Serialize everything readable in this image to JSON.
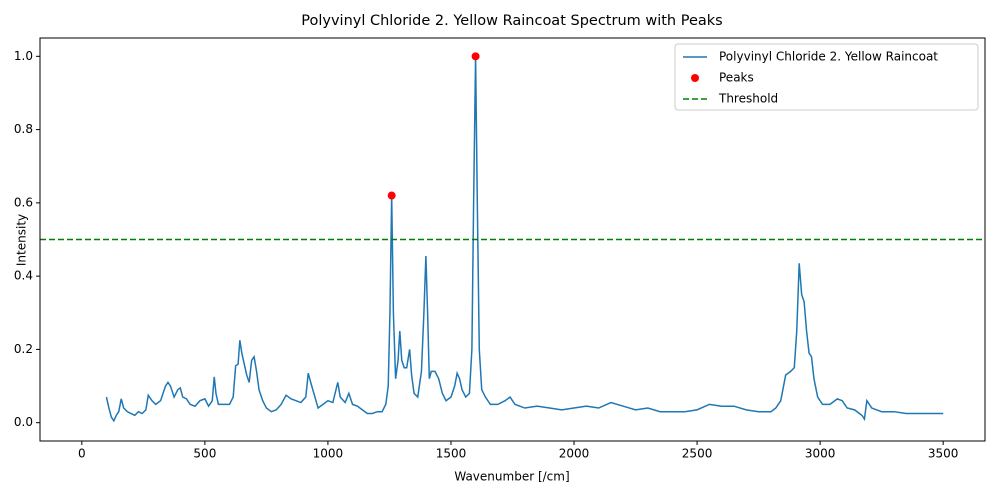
{
  "chart_data": {
    "type": "line",
    "title": "Polyvinyl Chloride 2. Yellow Raincoat Spectrum with Peaks",
    "xlabel": "Wavenumber [/cm]",
    "ylabel": "Intensity",
    "xlim": [
      -170,
      3670
    ],
    "ylim": [
      -0.05,
      1.05
    ],
    "xticks": [
      0,
      500,
      1000,
      1500,
      2000,
      2500,
      3000,
      3500
    ],
    "yticks": [
      {
        "value": 0,
        "label": "0.0"
      },
      0.2,
      0.4,
      0.6,
      0.8,
      {
        "value": 1,
        "label": "1.0"
      }
    ],
    "legend": "upper right",
    "series": [
      {
        "name": "Polyvinyl Chloride 2. Yellow Raincoat",
        "color": "#1f77b4",
        "kind": "line",
        "x": [
          100,
          110,
          120,
          130,
          140,
          150,
          160,
          170,
          185,
          200,
          215,
          230,
          245,
          260,
          270,
          285,
          300,
          320,
          340,
          350,
          360,
          375,
          390,
          400,
          410,
          425,
          440,
          460,
          480,
          500,
          515,
          530,
          538,
          545,
          555,
          575,
          600,
          615,
          625,
          635,
          642,
          650,
          660,
          670,
          680,
          690,
          700,
          710,
          720,
          735,
          750,
          770,
          790,
          810,
          830,
          850,
          870,
          890,
          910,
          920,
          930,
          945,
          960,
          980,
          1000,
          1020,
          1040,
          1050,
          1070,
          1085,
          1100,
          1120,
          1140,
          1160,
          1180,
          1200,
          1220,
          1235,
          1245,
          1252,
          1259,
          1266,
          1275,
          1285,
          1292,
          1300,
          1310,
          1320,
          1332,
          1340,
          1350,
          1365,
          1380,
          1390,
          1398,
          1405,
          1412,
          1420,
          1435,
          1450,
          1465,
          1480,
          1500,
          1515,
          1525,
          1535,
          1545,
          1560,
          1575,
          1585,
          1592,
          1600,
          1607,
          1615,
          1625,
          1640,
          1660,
          1690,
          1720,
          1740,
          1760,
          1800,
          1850,
          1900,
          1950,
          2000,
          2050,
          2100,
          2150,
          2200,
          2250,
          2300,
          2350,
          2400,
          2450,
          2500,
          2550,
          2600,
          2650,
          2700,
          2750,
          2800,
          2820,
          2840,
          2860,
          2880,
          2895,
          2905,
          2915,
          2925,
          2935,
          2945,
          2955,
          2965,
          2975,
          2990,
          3010,
          3040,
          3070,
          3090,
          3110,
          3140,
          3170,
          3180,
          3190,
          3210,
          3250,
          3300,
          3350,
          3400,
          3450,
          3500
        ],
        "values": [
          0.07,
          0.04,
          0.015,
          0.005,
          0.02,
          0.03,
          0.065,
          0.04,
          0.03,
          0.025,
          0.02,
          0.03,
          0.025,
          0.035,
          0.075,
          0.06,
          0.05,
          0.06,
          0.1,
          0.11,
          0.1,
          0.07,
          0.09,
          0.095,
          0.07,
          0.065,
          0.05,
          0.045,
          0.06,
          0.065,
          0.045,
          0.06,
          0.125,
          0.08,
          0.05,
          0.05,
          0.05,
          0.07,
          0.155,
          0.16,
          0.225,
          0.19,
          0.16,
          0.13,
          0.11,
          0.17,
          0.18,
          0.14,
          0.09,
          0.06,
          0.04,
          0.03,
          0.035,
          0.05,
          0.075,
          0.065,
          0.06,
          0.055,
          0.07,
          0.135,
          0.11,
          0.075,
          0.04,
          0.05,
          0.06,
          0.055,
          0.11,
          0.07,
          0.055,
          0.08,
          0.05,
          0.045,
          0.035,
          0.025,
          0.025,
          0.03,
          0.03,
          0.05,
          0.1,
          0.3,
          0.62,
          0.3,
          0.12,
          0.17,
          0.25,
          0.17,
          0.15,
          0.15,
          0.2,
          0.13,
          0.08,
          0.07,
          0.14,
          0.3,
          0.455,
          0.3,
          0.12,
          0.14,
          0.14,
          0.12,
          0.08,
          0.06,
          0.07,
          0.1,
          0.135,
          0.12,
          0.09,
          0.07,
          0.08,
          0.2,
          0.6,
          1.0,
          0.6,
          0.2,
          0.09,
          0.07,
          0.05,
          0.05,
          0.06,
          0.07,
          0.05,
          0.04,
          0.045,
          0.04,
          0.035,
          0.04,
          0.045,
          0.04,
          0.055,
          0.045,
          0.035,
          0.04,
          0.03,
          0.03,
          0.03,
          0.035,
          0.05,
          0.045,
          0.045,
          0.035,
          0.03,
          0.03,
          0.04,
          0.06,
          0.13,
          0.14,
          0.15,
          0.25,
          0.435,
          0.35,
          0.33,
          0.25,
          0.19,
          0.18,
          0.12,
          0.07,
          0.05,
          0.05,
          0.065,
          0.06,
          0.04,
          0.035,
          0.02,
          0.01,
          0.06,
          0.04,
          0.03,
          0.03,
          0.025,
          0.025,
          0.025,
          0.025
        ]
      },
      {
        "name": "Peaks",
        "color": "#ff0000",
        "kind": "scatter",
        "x": [
          1259,
          1600
        ],
        "values": [
          0.62,
          1.0
        ]
      },
      {
        "name": "Threshold",
        "color": "#008000",
        "kind": "hline",
        "values": [
          0.5
        ]
      }
    ]
  }
}
